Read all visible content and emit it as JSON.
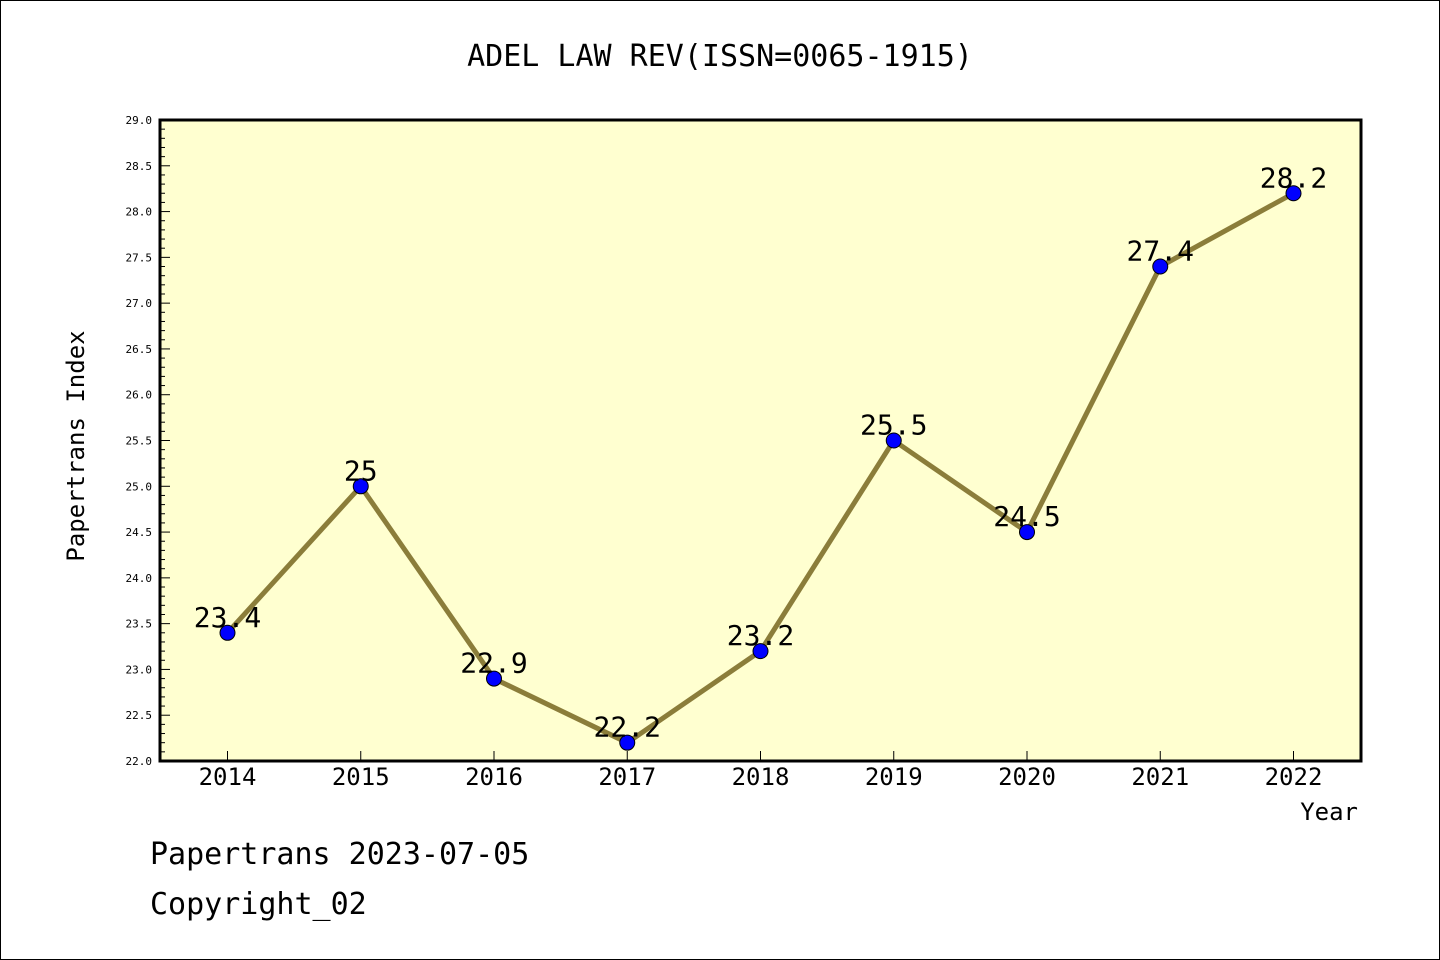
{
  "chart_data": {
    "type": "line",
    "title": "ADEL LAW REV(ISSN=0065-1915)",
    "xlabel": "Year",
    "ylabel": "Papertrans Index",
    "categories": [
      "2014",
      "2015",
      "2016",
      "2017",
      "2018",
      "2019",
      "2020",
      "2021",
      "2022"
    ],
    "series": [
      {
        "values": [
          23.4,
          25,
          22.9,
          22.2,
          23.2,
          25.5,
          24.5,
          27.4,
          28.2
        ],
        "labels": [
          "23.4",
          "25",
          "22.9",
          "22.2",
          "23.2",
          "25.5",
          "24.5",
          "27.4",
          "28.2"
        ]
      }
    ],
    "ylim": [
      22.0,
      29.0
    ],
    "yticks": [
      "22.0",
      "22.5",
      "23.0",
      "23.5",
      "24.0",
      "24.5",
      "25.0",
      "25.5",
      "26.0",
      "26.5",
      "27.0",
      "27.5",
      "28.0",
      "28.5",
      "29.0"
    ],
    "grid": false,
    "colors": {
      "plot_background": "#ffffd0",
      "line": "#8b7d3a",
      "marker": "#0000ff"
    }
  },
  "footer": {
    "line1": "Papertrans 2023-07-05",
    "line2": "Copyright_02"
  }
}
